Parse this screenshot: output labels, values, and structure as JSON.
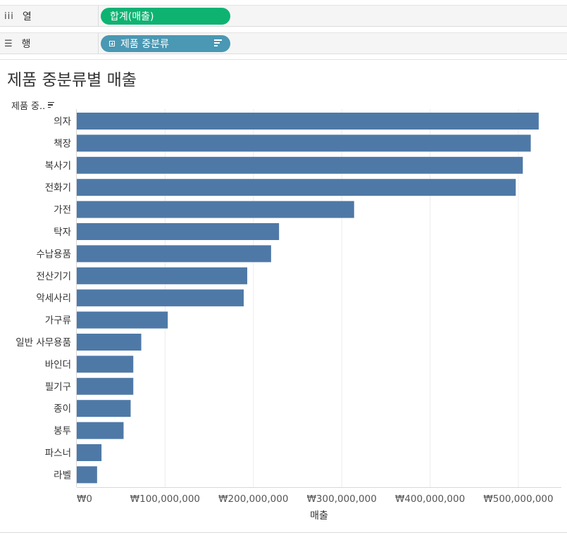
{
  "shelves": {
    "columns": {
      "label": "열",
      "icon": "columns-icon",
      "pill": "합계(매출)",
      "pill_color": "#0eb372"
    },
    "rows": {
      "label": "행",
      "icon": "rows-icon",
      "pill": "제품 중분류",
      "pill_color": "#4a98b3"
    }
  },
  "row_header": "제품 중..",
  "chart_data": {
    "type": "bar",
    "orientation": "horizontal",
    "title": "제품 중분류별 매출",
    "xlabel": "매출",
    "ylabel": "",
    "bar_color": "#4e79a7",
    "categories": [
      "의자",
      "책장",
      "복사기",
      "전화기",
      "가전",
      "탁자",
      "수납용품",
      "전산기기",
      "악세사리",
      "가구류",
      "일반 사무용품",
      "바인더",
      "필기구",
      "종이",
      "봉투",
      "파스너",
      "라벨"
    ],
    "values": [
      523000000,
      514000000,
      505000000,
      497000000,
      314000000,
      229000000,
      220000000,
      193000000,
      189000000,
      103000000,
      73000000,
      64000000,
      64000000,
      61000000,
      53000000,
      28000000,
      23000000
    ],
    "xlim": [
      0,
      550000000
    ],
    "xticks": [
      0,
      100000000,
      200000000,
      300000000,
      400000000,
      500000000
    ],
    "xtick_labels": [
      "₩0",
      "₩100,000,000",
      "₩200,000,000",
      "₩300,000,000",
      "₩400,000,000",
      "₩500,000,000"
    ],
    "grid": true
  }
}
